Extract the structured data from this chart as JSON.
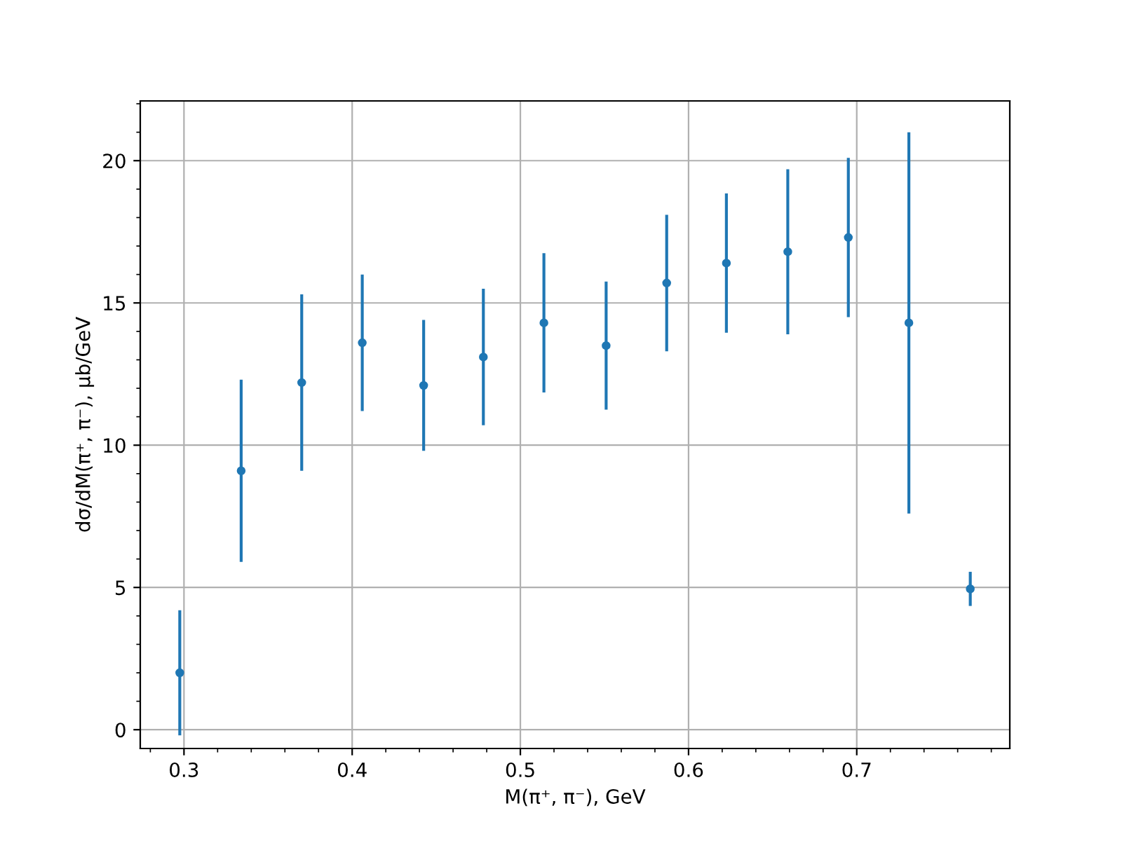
{
  "chart_data": {
    "type": "scatter",
    "xlabel": "M(π⁺, π⁻), GeV",
    "ylabel": "dσ/dM(π⁺, π⁻), μb/GeV",
    "x": [
      0.2975,
      0.334,
      0.37,
      0.406,
      0.4425,
      0.478,
      0.514,
      0.551,
      0.587,
      0.6225,
      0.659,
      0.695,
      0.731,
      0.7675
    ],
    "series": [
      {
        "color": "#1f77b4",
        "values": [
          2.0,
          9.1,
          12.2,
          13.6,
          12.1,
          13.1,
          14.3,
          13.5,
          15.7,
          16.4,
          16.8,
          17.3,
          14.3,
          4.95
        ],
        "errors": [
          2.2,
          3.2,
          3.1,
          2.4,
          2.3,
          2.4,
          2.45,
          2.25,
          2.4,
          2.45,
          2.9,
          2.8,
          6.7,
          0.6
        ]
      }
    ],
    "xlim": [
      0.274,
      0.791
    ],
    "ylim": [
      -0.66,
      22.1
    ],
    "xticks": [
      0.3,
      0.4,
      0.5,
      0.6,
      0.7
    ],
    "yticks": [
      0,
      5,
      10,
      15,
      20
    ],
    "grid": true,
    "marker": "circle",
    "line_style": "none"
  }
}
